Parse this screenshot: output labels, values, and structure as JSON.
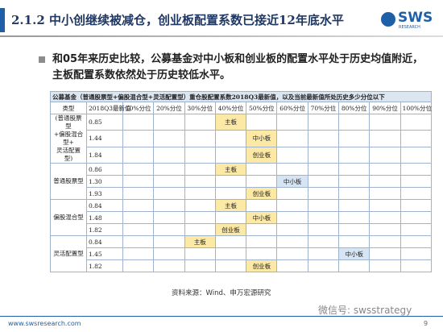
{
  "header": {
    "title": "2.1.2 中小创继续被减仓，创业板配置系数已接近12年底水平",
    "logo": "SWS",
    "logo_sub": "RESEARCH"
  },
  "bullet": "和05年来历史比较，公募基金对中小板和创业板的配置水平处于历史均值附近，主板配置系数依然处于历史较低水平。",
  "table": {
    "title": "公募基金（普通股票型+偏股混合型+灵活配置型）重仓股配置系数2018Q3最新值，以及当前最新值所处历史多少分位以下",
    "columns": [
      "类型",
      "2018Q3最新值",
      "10%分位",
      "20%分位",
      "30%分位",
      "40%分位",
      "50%分位",
      "60%分位",
      "70%分位",
      "80%分位",
      "90%分位",
      "100%分位"
    ],
    "groups": [
      {
        "label": "(普通股票型\n+偏股混合型+\n灵活配置型)",
        "rows": [
          {
            "value": "0.85",
            "cells": [
              null,
              null,
              null,
              "主板",
              null,
              null,
              null,
              null,
              null,
              null
            ]
          },
          {
            "value": "1.44",
            "cells": [
              null,
              null,
              null,
              null,
              "中小板",
              null,
              null,
              null,
              null,
              null
            ]
          },
          {
            "value": "1.84",
            "cells": [
              null,
              null,
              null,
              null,
              "创业板",
              null,
              null,
              null,
              null,
              null
            ]
          }
        ]
      },
      {
        "label": "普通股票型",
        "rows": [
          {
            "value": "0.86",
            "cells": [
              null,
              null,
              null,
              "主板",
              null,
              null,
              null,
              null,
              null,
              null
            ]
          },
          {
            "value": "1.30",
            "cells": [
              null,
              null,
              null,
              null,
              null,
              "中小板",
              null,
              null,
              null,
              null
            ]
          },
          {
            "value": "1.93",
            "cells": [
              null,
              null,
              null,
              null,
              "创业板",
              null,
              null,
              null,
              null,
              null
            ]
          }
        ]
      },
      {
        "label": "偏股混合型",
        "rows": [
          {
            "value": "0.84",
            "cells": [
              null,
              null,
              null,
              "主板",
              null,
              null,
              null,
              null,
              null,
              null
            ]
          },
          {
            "value": "1.48",
            "cells": [
              null,
              null,
              null,
              null,
              "中小板",
              null,
              null,
              null,
              null,
              null
            ]
          },
          {
            "value": "1.82",
            "cells": [
              null,
              null,
              null,
              "创业板",
              null,
              null,
              null,
              null,
              null,
              null
            ]
          }
        ]
      },
      {
        "label": "灵活配置型",
        "rows": [
          {
            "value": "0.84",
            "cells": [
              null,
              null,
              "主板",
              null,
              null,
              null,
              null,
              null,
              null,
              null
            ]
          },
          {
            "value": "1.45",
            "cells": [
              null,
              null,
              null,
              null,
              null,
              null,
              null,
              "中小板",
              null,
              null
            ]
          },
          {
            "value": "1.82",
            "cells": [
              null,
              null,
              null,
              null,
              "创业板",
              null,
              null,
              null,
              null,
              null
            ]
          }
        ]
      }
    ]
  },
  "source": "资料来源：Wind、申万宏源研究",
  "footer": {
    "url": "www.swsresearch.com",
    "page": "9",
    "watermark": "微信号: swsstrategy"
  }
}
